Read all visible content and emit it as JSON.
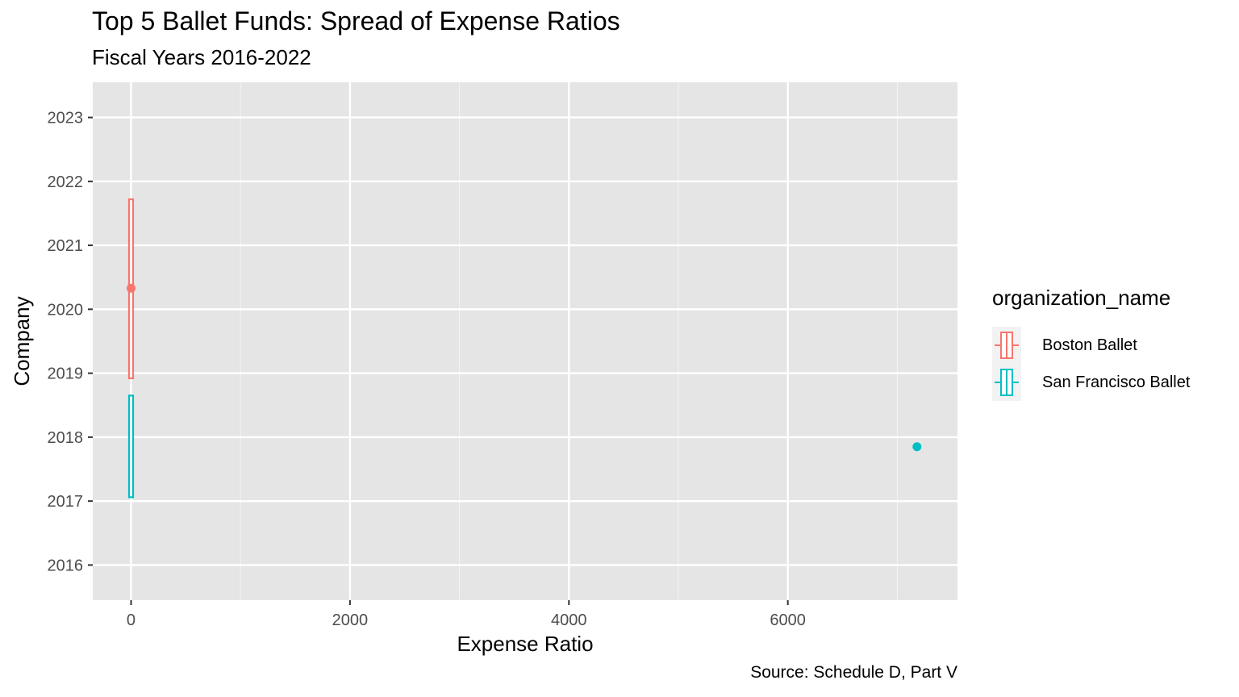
{
  "chart_data": {
    "type": "boxplot",
    "title": "Top 5 Ballet Funds: Spread of Expense Ratios",
    "subtitle": "Fiscal Years 2016-2022",
    "caption": "Source: Schedule D, Part V",
    "xlabel": "Expense Ratio",
    "ylabel": "Company",
    "xlim": [
      -350,
      7550
    ],
    "ylim": [
      2015.45,
      2023.55
    ],
    "xticks": [
      0,
      2000,
      4000,
      6000
    ],
    "yticks": [
      2016,
      2017,
      2018,
      2019,
      2020,
      2021,
      2022,
      2023
    ],
    "grid": true,
    "legend": {
      "title": "organization_name",
      "position": "right"
    },
    "series": [
      {
        "name": "Boston Ballet",
        "color": "#F8766D",
        "box": {
          "x": 0,
          "ymin": 2018.92,
          "ymax": 2021.72
        },
        "outliers": [
          {
            "x": 0,
            "y": 2020.33
          }
        ]
      },
      {
        "name": "San Francisco Ballet",
        "color": "#00BFC4",
        "box": {
          "x": 0,
          "ymin": 2017.06,
          "ymax": 2018.65
        },
        "outliers": [
          {
            "x": 7180,
            "y": 2017.85
          }
        ]
      }
    ]
  }
}
